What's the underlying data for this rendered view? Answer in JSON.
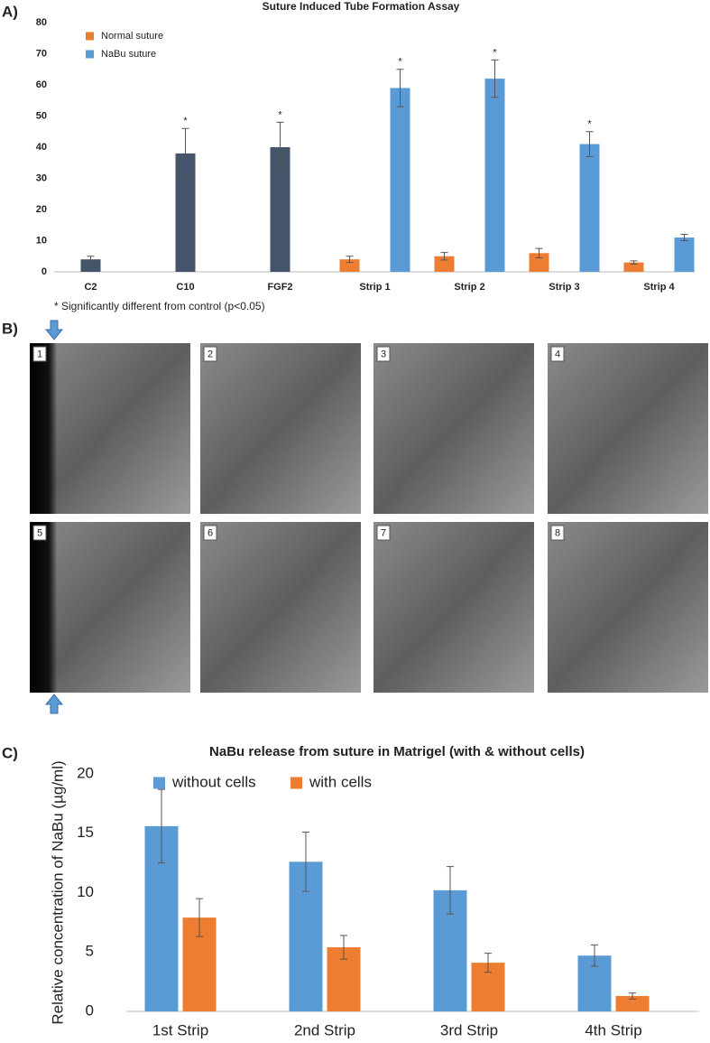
{
  "panel_labels": [
    "A)",
    "B)",
    "C)"
  ],
  "micrographs": [
    "1",
    "2",
    "3",
    "4",
    "5",
    "6",
    "7",
    "8"
  ],
  "chart_data": [
    {
      "type": "bar",
      "title": "Suture Induced Tube Formation Assay",
      "categories": [
        "C2",
        "C10",
        "FGF2",
        "Strip 1",
        "Strip 2",
        "Strip 3",
        "Strip 4"
      ],
      "series": [
        {
          "color": "#44546a",
          "values": [
            4,
            38,
            40,
            null,
            null,
            null,
            null
          ],
          "errors": [
            1,
            8,
            8,
            null,
            null,
            null,
            null
          ],
          "significance": [
            null,
            "*",
            "*",
            null,
            null,
            null,
            null
          ]
        },
        {
          "name": "Normal suture",
          "color": "#ed7d31",
          "values": [
            null,
            null,
            null,
            4,
            5,
            6,
            3
          ],
          "errors": [
            null,
            null,
            null,
            1,
            1.2,
            1.5,
            0.5
          ],
          "significance": [
            null,
            null,
            null,
            null,
            null,
            null,
            null
          ]
        },
        {
          "name": "NaBu suture",
          "color": "#5b9bd5",
          "values": [
            null,
            null,
            null,
            59,
            62,
            41,
            11
          ],
          "errors": [
            null,
            null,
            null,
            6,
            6,
            4,
            1
          ],
          "significance": [
            null,
            null,
            null,
            "*",
            "*",
            "*",
            null
          ]
        }
      ],
      "ylim": [
        0,
        80
      ],
      "yticks": [
        0,
        10,
        20,
        30,
        40,
        50,
        60,
        70,
        80
      ],
      "grid": false,
      "legend": "top-left",
      "footnote": "* Significantly different from control (p<0.05)"
    },
    {
      "type": "bar",
      "title": "NaBu release from suture in Matrigel (with & without cells)",
      "y_label": "Relative concentration of NaBu (µg/ml)",
      "categories": [
        "1st Strip",
        "2nd Strip",
        "3rd Strip",
        "4th Strip"
      ],
      "series": [
        {
          "name": "without cells",
          "color": "#5b9bd5",
          "values": [
            15.6,
            12.6,
            10.2,
            4.7
          ],
          "errors": [
            3.1,
            2.5,
            2.0,
            0.9
          ]
        },
        {
          "name": "with cells",
          "color": "#ed7d31",
          "values": [
            7.9,
            5.4,
            4.1,
            1.3
          ],
          "errors": [
            1.6,
            1.0,
            0.8,
            0.25
          ]
        }
      ],
      "ylim": [
        0,
        20
      ],
      "yticks": [
        0,
        5,
        10,
        15,
        20
      ],
      "grid": false,
      "legend": "top-left"
    }
  ]
}
